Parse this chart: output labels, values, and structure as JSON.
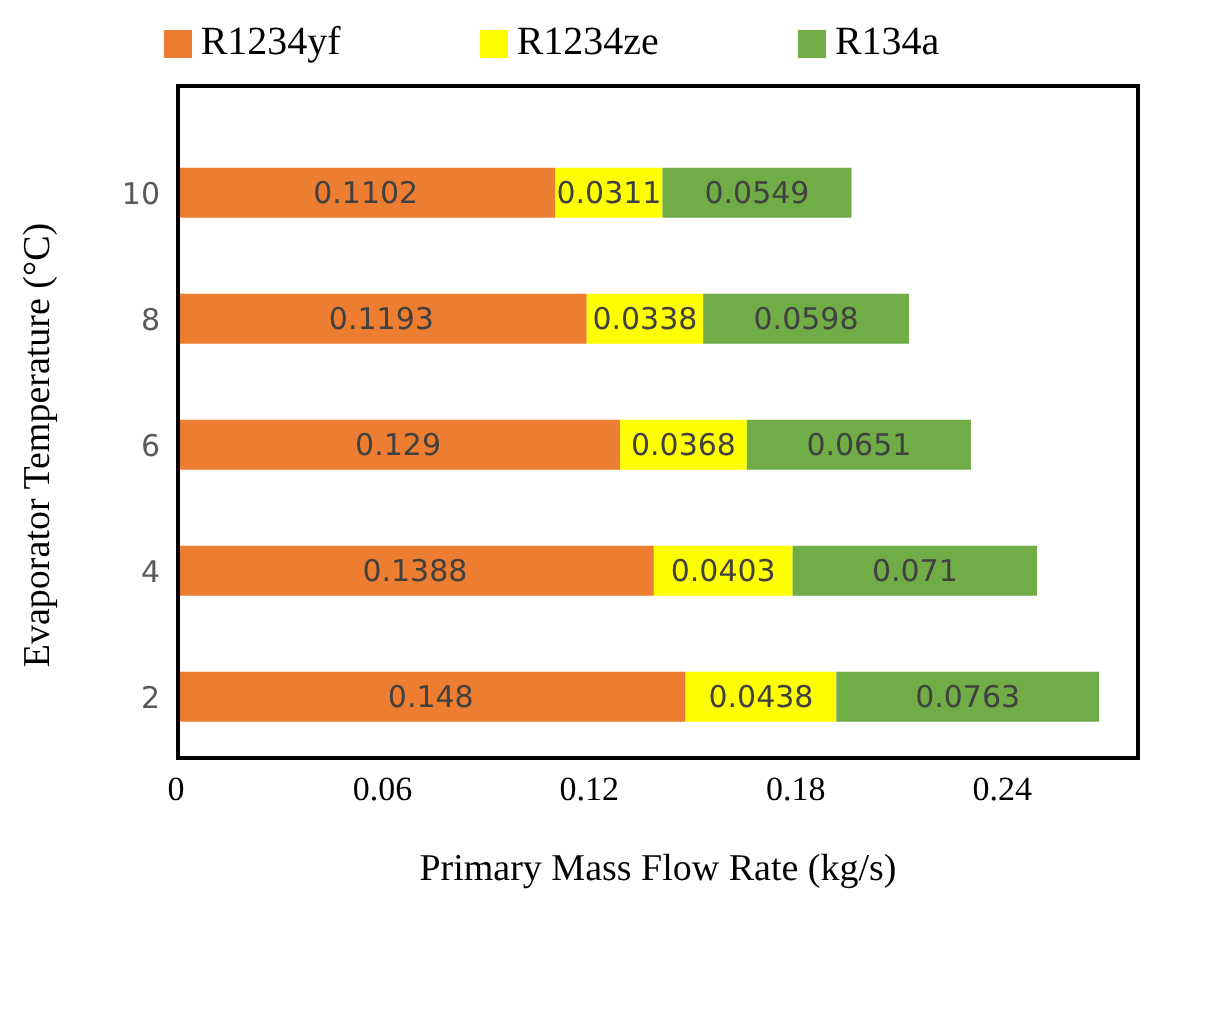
{
  "chart_data": {
    "type": "bar",
    "orientation": "horizontal",
    "stacked": true,
    "xlabel": "Primary Mass Flow Rate (kg/s)",
    "ylabel": "Evaporator Temperature (°C)",
    "categories": [
      "10",
      "8",
      "6",
      "4",
      "2"
    ],
    "series": [
      {
        "name": "R1234yf",
        "color": "#ed7d31",
        "values": [
          0.1102,
          0.1193,
          0.129,
          0.1388,
          0.148
        ]
      },
      {
        "name": "R1234ze",
        "color": "#ffff00",
        "values": [
          0.0311,
          0.0338,
          0.0368,
          0.0403,
          0.0438
        ]
      },
      {
        "name": "R134a",
        "color": "#70ad47",
        "values": [
          0.0549,
          0.0598,
          0.0651,
          0.071,
          0.0763
        ]
      }
    ],
    "xlim": [
      0,
      0.28
    ],
    "xticks": [
      0,
      0.06,
      0.12,
      0.18,
      0.24
    ],
    "data_labels": true,
    "legend": "top",
    "grid": false
  }
}
